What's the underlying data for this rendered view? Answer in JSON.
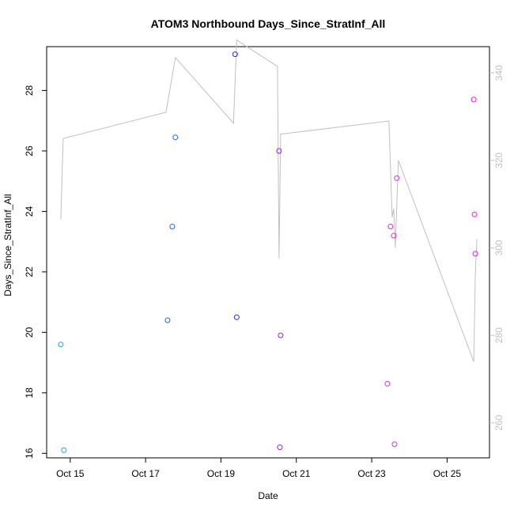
{
  "chart_data": {
    "type": "scatter",
    "title": "ATOM3 Northbound Days_Since_StratInf_All",
    "xlabel": "Date",
    "ylabel": "Days_Since_StratInf_All",
    "xlim": [
      "2019-10-14T09:00",
      "2019-10-26T03:00"
    ],
    "ylim": [
      15.85,
      29.45
    ],
    "y2lim": [
      252,
      346
    ],
    "x_ticks": [
      {
        "x": "2019-10-15",
        "label": "Oct 15"
      },
      {
        "x": "2019-10-17",
        "label": "Oct 17"
      },
      {
        "x": "2019-10-19",
        "label": "Oct 19"
      },
      {
        "x": "2019-10-21",
        "label": "Oct 21"
      },
      {
        "x": "2019-10-23",
        "label": "Oct 23"
      },
      {
        "x": "2019-10-25",
        "label": "Oct 25"
      }
    ],
    "y_ticks": [
      16,
      18,
      20,
      22,
      24,
      26,
      28
    ],
    "y2_ticks": [
      260,
      280,
      300,
      320,
      340
    ],
    "grid": false,
    "points": [
      {
        "x": "2019-10-14T18:00",
        "y": 19.6,
        "color": "#29a8d8"
      },
      {
        "x": "2019-10-14T20:00",
        "y": 16.1,
        "color": "#29a8d8"
      },
      {
        "x": "2019-10-17T14:00",
        "y": 20.4,
        "color": "#1f64e0"
      },
      {
        "x": "2019-10-17T17:00",
        "y": 23.5,
        "color": "#1f64e0"
      },
      {
        "x": "2019-10-17T19:00",
        "y": 26.45,
        "color": "#1f64e0"
      },
      {
        "x": "2019-10-19T09:00",
        "y": 29.2,
        "color": "#2a2ae0"
      },
      {
        "x": "2019-10-19T10:00",
        "y": 20.5,
        "color": "#2a2ae0"
      },
      {
        "x": "2019-10-20T13:00",
        "y": 26.0,
        "color": "#8a2be2"
      },
      {
        "x": "2019-10-20T13:30",
        "y": 16.2,
        "color": "#8a2be2"
      },
      {
        "x": "2019-10-20T14:00",
        "y": 19.9,
        "color": "#8a2be2"
      },
      {
        "x": "2019-10-23T10:00",
        "y": 18.3,
        "color": "#cc33cc"
      },
      {
        "x": "2019-10-23T12:00",
        "y": 23.5,
        "color": "#cc33cc"
      },
      {
        "x": "2019-10-23T14:00",
        "y": 23.2,
        "color": "#cc33cc"
      },
      {
        "x": "2019-10-23T14:30",
        "y": 16.3,
        "color": "#cc33cc"
      },
      {
        "x": "2019-10-23T16:00",
        "y": 25.1,
        "color": "#cc33cc"
      },
      {
        "x": "2019-10-25T17:00",
        "y": 27.7,
        "color": "#dd22dd"
      },
      {
        "x": "2019-10-25T17:30",
        "y": 23.9,
        "color": "#dd22dd"
      },
      {
        "x": "2019-10-25T18:00",
        "y": 22.6,
        "color": "#dd22dd"
      }
    ],
    "line_series": {
      "axis": "right",
      "color": "#c0c0c0",
      "points": [
        {
          "x": "2019-10-14T18:00",
          "y": 306.5
        },
        {
          "x": "2019-10-14T19:30",
          "y": 325
        },
        {
          "x": "2019-10-17T13:00",
          "y": 331
        },
        {
          "x": "2019-10-17T19:00",
          "y": 343.5
        },
        {
          "x": "2019-10-19T08:00",
          "y": 328.5
        },
        {
          "x": "2019-10-19T10:00",
          "y": 347.5
        },
        {
          "x": "2019-10-20T12:00",
          "y": 341.5
        },
        {
          "x": "2019-10-20T13:00",
          "y": 297.5
        },
        {
          "x": "2019-10-20T14:00",
          "y": 326
        },
        {
          "x": "2019-10-23T11:00",
          "y": 329
        },
        {
          "x": "2019-10-23T13:00",
          "y": 307
        },
        {
          "x": "2019-10-23T14:00",
          "y": 309
        },
        {
          "x": "2019-10-23T15:00",
          "y": 300
        },
        {
          "x": "2019-10-23T17:00",
          "y": 320
        },
        {
          "x": "2019-10-25T17:00",
          "y": 274
        },
        {
          "x": "2019-10-25T18:00",
          "y": 294
        },
        {
          "x": "2019-10-25T19:00",
          "y": 302
        }
      ]
    }
  }
}
